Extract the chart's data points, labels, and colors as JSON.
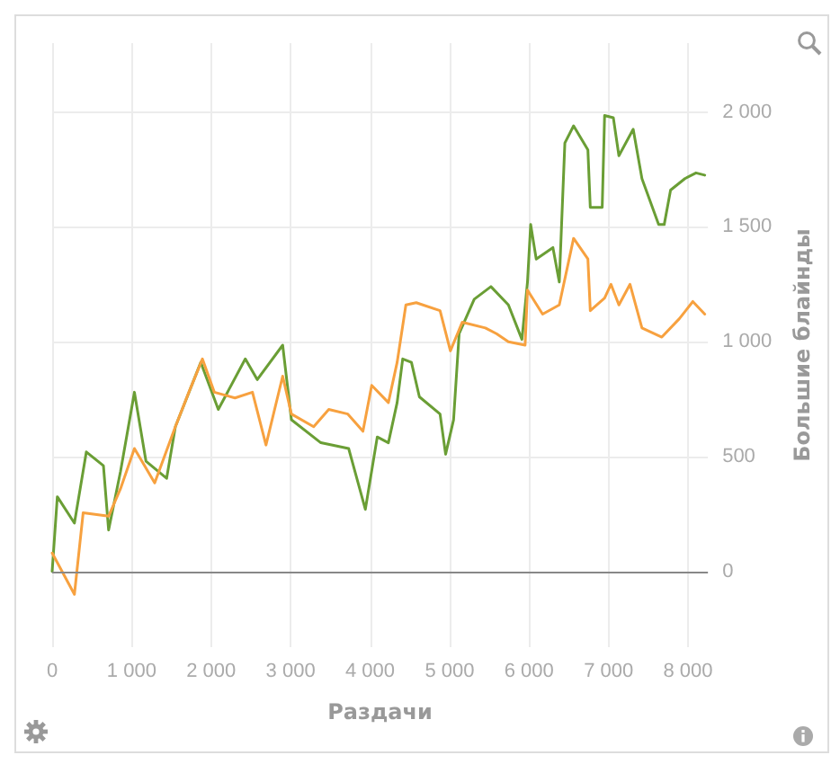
{
  "chart_data": {
    "type": "line",
    "xlabel": "Раздачи",
    "ylabel": "Большие блайнды",
    "xlim": [
      0,
      8250
    ],
    "ylim": [
      -330,
      2300
    ],
    "xticks": [
      0,
      {
        "value": 1000,
        "label": "1 000"
      },
      {
        "value": 2000,
        "label": "2 000"
      },
      {
        "value": 3000,
        "label": "3 000"
      },
      {
        "value": 4000,
        "label": "4 000"
      },
      {
        "value": 5000,
        "label": "5 000"
      },
      {
        "value": 6000,
        "label": "6 000"
      },
      {
        "value": 7000,
        "label": "7 000"
      },
      {
        "value": 8000,
        "label": "8 000"
      }
    ],
    "yticks": [
      0,
      500,
      {
        "value": 1000,
        "label": "1 000"
      },
      {
        "value": 1500,
        "label": "1 500"
      },
      {
        "value": 2000,
        "label": "2 000"
      }
    ],
    "grid": true,
    "marker": "none",
    "line_style": "solid",
    "ref_lines": [
      {
        "axis": "y",
        "value": 0,
        "color": "#888888"
      }
    ],
    "series": [
      {
        "color": "#6a9e35",
        "x": [
          0,
          65,
          280,
          430,
          645,
          710,
          860,
          1035,
          1180,
          1440,
          1550,
          1870,
          2090,
          2430,
          2580,
          2900,
          3010,
          3380,
          3730,
          3940,
          4090,
          4230,
          4340,
          4410,
          4520,
          4620,
          4880,
          4950,
          5050,
          5120,
          5310,
          5520,
          5740,
          5910,
          5980,
          6020,
          6090,
          6300,
          6380,
          6450,
          6560,
          6740,
          6770,
          6920,
          6950,
          7060,
          7130,
          7310,
          7420,
          7630,
          7700,
          7780,
          7960,
          8100,
          8210
        ],
        "values": [
          0,
          325,
          210,
          520,
          460,
          180,
          435,
          780,
          480,
          405,
          630,
          910,
          705,
          925,
          835,
          985,
          660,
          560,
          535,
          270,
          585,
          560,
          735,
          925,
          910,
          760,
          685,
          510,
          660,
          1035,
          1185,
          1240,
          1160,
          1010,
          1260,
          1510,
          1360,
          1410,
          1260,
          1865,
          1940,
          1835,
          1585,
          1585,
          1985,
          1975,
          1810,
          1925,
          1710,
          1510,
          1510,
          1660,
          1710,
          1735,
          1725
        ]
      },
      {
        "color": "#f7a13f",
        "x": [
          0,
          280,
          390,
          710,
          860,
          1035,
          1290,
          1550,
          1720,
          1890,
          2040,
          2300,
          2520,
          2690,
          2900,
          3010,
          3290,
          3480,
          3720,
          3910,
          4020,
          4230,
          4340,
          4450,
          4580,
          4880,
          5010,
          5160,
          5450,
          5590,
          5740,
          5950,
          5980,
          6170,
          6380,
          6560,
          6740,
          6770,
          6950,
          7030,
          7130,
          7270,
          7420,
          7670,
          7890,
          8060,
          8210
        ],
        "values": [
          80,
          -100,
          255,
          240,
          360,
          535,
          385,
          630,
          780,
          925,
          780,
          755,
          780,
          550,
          850,
          685,
          630,
          705,
          685,
          610,
          810,
          735,
          910,
          1160,
          1170,
          1135,
          960,
          1085,
          1060,
          1035,
          1000,
          985,
          1225,
          1120,
          1160,
          1450,
          1360,
          1135,
          1190,
          1250,
          1160,
          1250,
          1060,
          1020,
          1100,
          1175,
          1120
        ]
      }
    ]
  }
}
